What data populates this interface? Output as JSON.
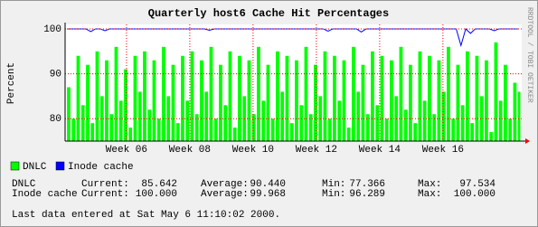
{
  "chart_data": {
    "type": "area",
    "title": "Quarterly host6 Cache Hit Percentages",
    "y_label": "Percent",
    "side_text": "RRDTOOL / TOBI OETIKER",
    "x": [
      4.12,
      4.27,
      4.42,
      4.57,
      4.72,
      4.87,
      5.02,
      5.17,
      5.32,
      5.47,
      5.62,
      5.77,
      5.92,
      6.07,
      6.22,
      6.37,
      6.52,
      6.67,
      6.82,
      6.97,
      7.12,
      7.27,
      7.42,
      7.57,
      7.72,
      7.87,
      8.02,
      8.17,
      8.32,
      8.47,
      8.62,
      8.77,
      8.92,
      9.07,
      9.22,
      9.37,
      9.52,
      9.67,
      9.82,
      9.97,
      10.12,
      10.27,
      10.42,
      10.57,
      10.72,
      10.87,
      11.02,
      11.17,
      11.32,
      11.47,
      11.62,
      11.77,
      11.92,
      12.07,
      12.22,
      12.37,
      12.52,
      12.67,
      12.82,
      12.97,
      13.12,
      13.27,
      13.42,
      13.57,
      13.72,
      13.87,
      14.02,
      14.17,
      14.32,
      14.47,
      14.62,
      14.77,
      14.92,
      15.07,
      15.22,
      15.37,
      15.52,
      15.67,
      15.82,
      15.97,
      16.12,
      16.27,
      16.42,
      16.57,
      16.72,
      16.87,
      17.02,
      17.17,
      17.32,
      17.47,
      17.62,
      17.77,
      17.92,
      18.07,
      18.22,
      18.37
    ],
    "series": [
      {
        "name": "DNLC",
        "color": "#00ff00",
        "values": [
          87,
          80,
          94,
          83,
          92,
          79,
          95,
          85,
          93,
          81,
          96,
          84,
          91,
          78,
          94,
          86,
          95,
          82,
          93,
          80,
          96,
          85,
          92,
          79,
          94,
          84,
          95,
          81,
          93,
          86,
          96,
          80,
          92,
          83,
          95,
          78,
          94,
          85,
          93,
          81,
          96,
          84,
          92,
          80,
          95,
          86,
          94,
          79,
          93,
          83,
          96,
          81,
          92,
          85,
          95,
          80,
          94,
          84,
          93,
          78,
          96,
          86,
          92,
          81,
          95,
          83,
          94,
          80,
          93,
          85,
          96,
          82,
          92,
          79,
          95,
          84,
          94,
          81,
          93,
          86,
          96,
          80,
          92,
          83,
          95,
          79,
          94,
          85,
          93,
          77,
          97,
          84,
          92,
          80,
          88,
          86
        ]
      },
      {
        "name": "Inode cache",
        "color": "#0000ff",
        "values": [
          100,
          100,
          100,
          100,
          100,
          99.4,
          100,
          100,
          99.6,
          100,
          100,
          100,
          100,
          100,
          100,
          100,
          100,
          100,
          100,
          100,
          100,
          100,
          100,
          100,
          100,
          100,
          100,
          100,
          100,
          100,
          99.7,
          100,
          100,
          100,
          100,
          100,
          100,
          100,
          100,
          100,
          100,
          100,
          100,
          100,
          100,
          100,
          100,
          100,
          100,
          100,
          100,
          100,
          100,
          100,
          100,
          99.5,
          100,
          100,
          100,
          100,
          100,
          100,
          99.3,
          100,
          100,
          100,
          100,
          100,
          100,
          100,
          100,
          100,
          100,
          100,
          100,
          100,
          100,
          100,
          100,
          100,
          100,
          100,
          100,
          96.3,
          100,
          99.0,
          100,
          100,
          100,
          100,
          99.6,
          100,
          100,
          100,
          100,
          100
        ]
      }
    ],
    "xlim": [
      4.06,
      18.49
    ],
    "xticks": [
      {
        "value": 6,
        "label": "Week 06"
      },
      {
        "value": 8,
        "label": "Week 08"
      },
      {
        "value": 10,
        "label": "Week 10"
      },
      {
        "value": 12,
        "label": "Week 12"
      },
      {
        "value": 14,
        "label": "Week 14"
      },
      {
        "value": 16,
        "label": "Week 16"
      }
    ],
    "ylim": [
      75,
      101
    ],
    "yticks": [
      80,
      90,
      100
    ],
    "grid": true,
    "grid_color": "#ff0000",
    "stats": [
      [
        "DNLC",
        "Current:",
        "85.642",
        "Average:",
        "90.440",
        "Min:",
        "77.366",
        "Max:",
        "97.534"
      ],
      [
        "Inode cache",
        "Current:",
        "100.000",
        "Average:",
        "99.968",
        "Min:",
        "96.289",
        "Max:",
        "100.000"
      ]
    ],
    "footer": "Last data entered at Sat May  6 11:10:02 2000."
  }
}
